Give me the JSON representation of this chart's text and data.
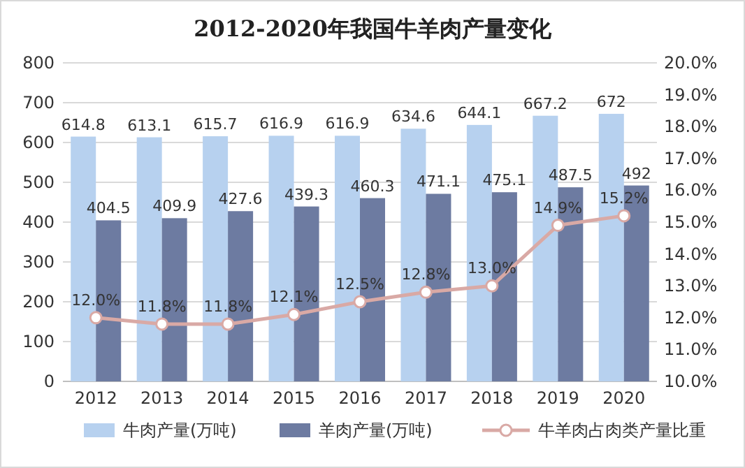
{
  "chart_data": {
    "type": "bar",
    "title": "2012-2020年我国牛羊肉产量变化",
    "categories": [
      "2012",
      "2013",
      "2014",
      "2015",
      "2016",
      "2017",
      "2018",
      "2019",
      "2020"
    ],
    "series": [
      {
        "name": "牛肉产量(万吨)",
        "color": "#b7d1ef",
        "values": [
          614.8,
          613.1,
          615.7,
          616.9,
          616.9,
          634.6,
          644.1,
          667.2,
          672
        ]
      },
      {
        "name": "羊肉产量(万吨)",
        "color": "#6d7ba1",
        "values": [
          404.5,
          409.9,
          427.6,
          439.3,
          460.3,
          471.1,
          475.1,
          487.5,
          492
        ]
      },
      {
        "name": "牛羊肉占肉类产量比重",
        "type": "line",
        "axis": "y2",
        "color": "#d9a9a5",
        "marker": "circle",
        "values": [
          12.0,
          11.8,
          11.8,
          12.1,
          12.5,
          12.8,
          13.0,
          14.9,
          15.2
        ],
        "value_labels": [
          "12.0%",
          "11.8%",
          "11.8%",
          "12.1%",
          "12.5%",
          "12.8%",
          "13.0%",
          "14.9%",
          "15.2%"
        ]
      }
    ],
    "ylim": [
      0,
      800
    ],
    "yticks": [
      0,
      100,
      200,
      300,
      400,
      500,
      600,
      700,
      800
    ],
    "y2lim": [
      10,
      20
    ],
    "y2ticks": [
      {
        "value": 10,
        "label": "10.0%"
      },
      {
        "value": 11,
        "label": "11.0%"
      },
      {
        "value": 12,
        "label": "12.0%"
      },
      {
        "value": 13,
        "label": "13.0%"
      },
      {
        "value": 14,
        "label": "14.0%"
      },
      {
        "value": 15,
        "label": "15.0%"
      },
      {
        "value": 16,
        "label": "16.0%"
      },
      {
        "value": 17,
        "label": "17.0%"
      },
      {
        "value": 18,
        "label": "18.0%"
      },
      {
        "value": 19,
        "label": "19.0%"
      },
      {
        "value": 20,
        "label": "20.0%"
      }
    ],
    "grid": "y",
    "legend": "bottom",
    "data_labels": true
  }
}
